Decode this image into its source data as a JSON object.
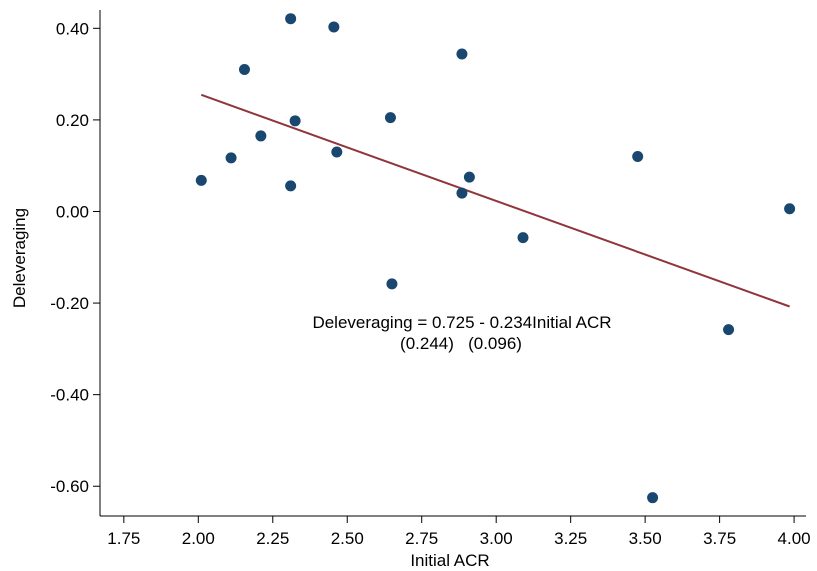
{
  "chart_data": {
    "type": "scatter",
    "title": "",
    "xlabel": "Initial ACR",
    "ylabel": "Deleveraging",
    "xlim": [
      1.67,
      4.04
    ],
    "ylim": [
      -0.665,
      0.44
    ],
    "xticks": [
      1.75,
      2.0,
      2.25,
      2.5,
      2.75,
      3.0,
      3.25,
      3.5,
      3.75,
      4.0
    ],
    "xtick_labels": [
      "1.75",
      "2.00",
      "2.25",
      "2.50",
      "2.75",
      "3.00",
      "3.25",
      "3.50",
      "3.75",
      "4.00"
    ],
    "yticks": [
      0.4,
      0.2,
      0.0,
      -0.2,
      -0.4,
      -0.6
    ],
    "ytick_labels": [
      "0.40",
      "0.20",
      "0.00",
      "-0.20",
      "-0.40",
      "-0.60"
    ],
    "grid": false,
    "legend": "none",
    "point_color": "#1a476f",
    "line_color": "#90353b",
    "points": [
      {
        "x": 2.01,
        "y": 0.068
      },
      {
        "x": 2.11,
        "y": 0.117
      },
      {
        "x": 2.155,
        "y": 0.31
      },
      {
        "x": 2.21,
        "y": 0.165
      },
      {
        "x": 2.31,
        "y": 0.421
      },
      {
        "x": 2.31,
        "y": 0.056
      },
      {
        "x": 2.325,
        "y": 0.198
      },
      {
        "x": 2.455,
        "y": 0.403
      },
      {
        "x": 2.465,
        "y": 0.13
      },
      {
        "x": 2.645,
        "y": 0.205
      },
      {
        "x": 2.65,
        "y": -0.158
      },
      {
        "x": 2.885,
        "y": 0.344
      },
      {
        "x": 2.885,
        "y": 0.04
      },
      {
        "x": 2.91,
        "y": 0.075
      },
      {
        "x": 3.09,
        "y": -0.057
      },
      {
        "x": 3.475,
        "y": 0.12
      },
      {
        "x": 3.525,
        "y": -0.625
      },
      {
        "x": 3.78,
        "y": -0.258
      },
      {
        "x": 3.985,
        "y": 0.006
      }
    ],
    "fit_line": {
      "intercept": 0.725,
      "slope": -0.234,
      "x_range": [
        2.01,
        3.985
      ]
    },
    "annotation": {
      "line1": "Deleveraging = 0.725 - 0.234Initial ACR",
      "line2": "(0.244)   (0.096)"
    }
  }
}
